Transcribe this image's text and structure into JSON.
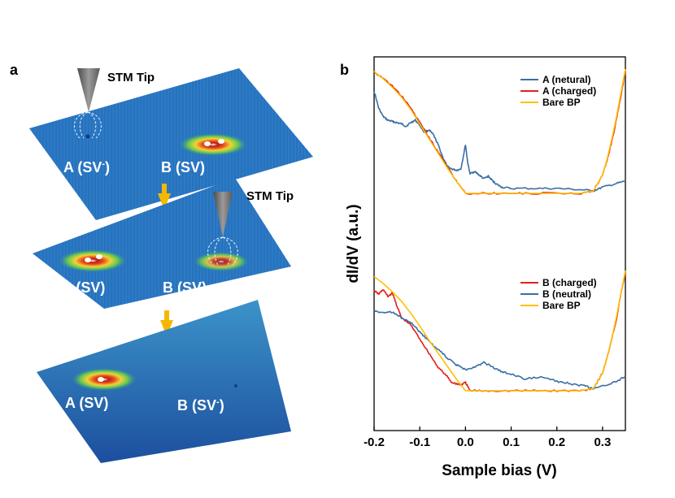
{
  "panel_a": {
    "letter": "a",
    "tip_label_1": "STM Tip",
    "tip_label_2": "STM Tip",
    "layer1": {
      "site_a": "A (SV",
      "site_a_sup": "-",
      "site_a_close": ")",
      "site_b": "B (SV)"
    },
    "layer2": {
      "site_a": "A (SV)",
      "site_b": "B (SV)"
    },
    "layer3": {
      "site_a": "A (SV)",
      "site_b": "B (SV",
      "site_b_sup": "-",
      "site_b_close": ")"
    },
    "colors": {
      "surface": "#2a78c4",
      "arrow": "#f5b800",
      "tip": "#6b6b6b",
      "hotspot": "#d9301e"
    }
  },
  "panel_b": {
    "letter": "b",
    "colors": {
      "neutral": "#3a6ea5",
      "charged": "#e0201b",
      "bare": "#ffc000"
    }
  },
  "chart_data": {
    "type": "line",
    "xlabel": "Sample bias (V)",
    "ylabel": "dI/dV (a.u.)",
    "xlim": [
      -0.2,
      0.35
    ],
    "x_ticks": [
      "-0.2",
      "-0.1",
      "0.0",
      "0.1",
      "0.2",
      "0.3"
    ],
    "grid": false,
    "legend_position": "top-right",
    "groups": [
      {
        "legend": [
          "A (netural)",
          "A (charged)",
          "Bare BP"
        ],
        "series": [
          {
            "name": "A (netural)",
            "color": "#3a6ea5",
            "noisy": true,
            "x": [
              -0.2,
              -0.19,
              -0.18,
              -0.17,
              -0.16,
              -0.15,
              -0.14,
              -0.13,
              -0.12,
              -0.11,
              -0.1,
              -0.09,
              -0.08,
              -0.07,
              -0.06,
              -0.05,
              -0.04,
              -0.03,
              -0.02,
              -0.01,
              0.0,
              0.005,
              0.01,
              0.02,
              0.03,
              0.04,
              0.05,
              0.06,
              0.07,
              0.08,
              0.1,
              0.15,
              0.2,
              0.25,
              0.28,
              0.3,
              0.33,
              0.35
            ],
            "y": [
              0.84,
              0.7,
              0.63,
              0.6,
              0.59,
              0.58,
              0.57,
              0.55,
              0.58,
              0.6,
              0.56,
              0.5,
              0.52,
              0.48,
              0.4,
              0.3,
              0.22,
              0.2,
              0.19,
              0.2,
              0.4,
              0.25,
              0.16,
              0.18,
              0.15,
              0.12,
              0.14,
              0.1,
              0.07,
              0.05,
              0.04,
              0.04,
              0.04,
              0.03,
              0.02,
              0.05,
              0.08,
              0.1
            ]
          },
          {
            "name": "A (charged)",
            "color": "#e0201b",
            "noisy": true,
            "x": [
              -0.2,
              -0.18,
              -0.16,
              -0.14,
              -0.12,
              -0.1,
              -0.08,
              -0.06,
              -0.04,
              -0.02,
              0.0,
              0.05,
              0.1,
              0.15,
              0.2,
              0.25,
              0.28,
              0.3,
              0.31,
              0.32,
              0.33,
              0.34,
              0.35
            ],
            "y": [
              1.0,
              0.94,
              0.88,
              0.8,
              0.7,
              0.58,
              0.46,
              0.34,
              0.22,
              0.1,
              0.0,
              0.0,
              0.0,
              0.0,
              0.0,
              0.0,
              0.02,
              0.15,
              0.27,
              0.42,
              0.6,
              0.8,
              1.0
            ]
          },
          {
            "name": "Bare BP",
            "color": "#ffc000",
            "noisy": false,
            "x": [
              -0.2,
              -0.18,
              -0.16,
              -0.14,
              -0.12,
              -0.1,
              -0.08,
              -0.06,
              -0.04,
              -0.02,
              0.0,
              0.05,
              0.1,
              0.15,
              0.2,
              0.25,
              0.28,
              0.3,
              0.31,
              0.32,
              0.33,
              0.34,
              0.35
            ],
            "y": [
              1.0,
              0.94,
              0.87,
              0.79,
              0.69,
              0.57,
              0.45,
              0.33,
              0.21,
              0.1,
              0.0,
              0.0,
              0.0,
              0.0,
              0.0,
              0.0,
              0.02,
              0.15,
              0.28,
              0.44,
              0.62,
              0.82,
              1.02
            ]
          }
        ]
      },
      {
        "legend": [
          "B (charged)",
          "B (neutral)",
          "Bare BP"
        ],
        "series": [
          {
            "name": "B (charged)",
            "color": "#e0201b",
            "noisy": true,
            "x": [
              -0.2,
              -0.19,
              -0.18,
              -0.17,
              -0.16,
              -0.15,
              -0.14,
              -0.12,
              -0.1,
              -0.08,
              -0.06,
              -0.04,
              -0.03,
              -0.02,
              -0.01,
              0.0,
              0.01,
              0.05,
              0.1,
              0.15,
              0.2,
              0.25,
              0.28,
              0.3,
              0.31,
              0.32,
              0.33,
              0.34,
              0.35
            ],
            "y": [
              0.85,
              0.82,
              0.86,
              0.8,
              0.83,
              0.72,
              0.62,
              0.56,
              0.44,
              0.32,
              0.2,
              0.12,
              0.07,
              0.06,
              0.05,
              0.07,
              0.0,
              0.0,
              0.0,
              0.0,
              0.0,
              0.0,
              0.02,
              0.15,
              0.28,
              0.44,
              0.6,
              0.82,
              1.0
            ]
          },
          {
            "name": "B (neutral)",
            "color": "#3a6ea5",
            "noisy": true,
            "x": [
              -0.2,
              -0.18,
              -0.16,
              -0.14,
              -0.12,
              -0.1,
              -0.08,
              -0.06,
              -0.04,
              -0.02,
              0.0,
              0.02,
              0.04,
              0.06,
              0.08,
              0.1,
              0.13,
              0.17,
              0.2,
              0.23,
              0.26,
              0.28,
              0.3,
              0.33,
              0.35
            ],
            "y": [
              0.68,
              0.66,
              0.67,
              0.62,
              0.58,
              0.5,
              0.42,
              0.35,
              0.28,
              0.22,
              0.18,
              0.2,
              0.24,
              0.2,
              0.16,
              0.14,
              0.1,
              0.12,
              0.08,
              0.06,
              0.04,
              0.02,
              0.04,
              0.08,
              0.12
            ]
          },
          {
            "name": "Bare BP",
            "color": "#ffc000",
            "noisy": false,
            "x": [
              -0.2,
              -0.18,
              -0.16,
              -0.14,
              -0.12,
              -0.1,
              -0.08,
              -0.06,
              -0.04,
              -0.02,
              0.0,
              0.05,
              0.1,
              0.15,
              0.2,
              0.25,
              0.28,
              0.3,
              0.31,
              0.32,
              0.33,
              0.34,
              0.35
            ],
            "y": [
              0.97,
              0.91,
              0.84,
              0.76,
              0.66,
              0.55,
              0.43,
              0.32,
              0.21,
              0.1,
              0.0,
              0.0,
              0.0,
              0.0,
              0.0,
              0.0,
              0.02,
              0.15,
              0.28,
              0.44,
              0.62,
              0.82,
              1.02
            ]
          }
        ]
      }
    ]
  }
}
